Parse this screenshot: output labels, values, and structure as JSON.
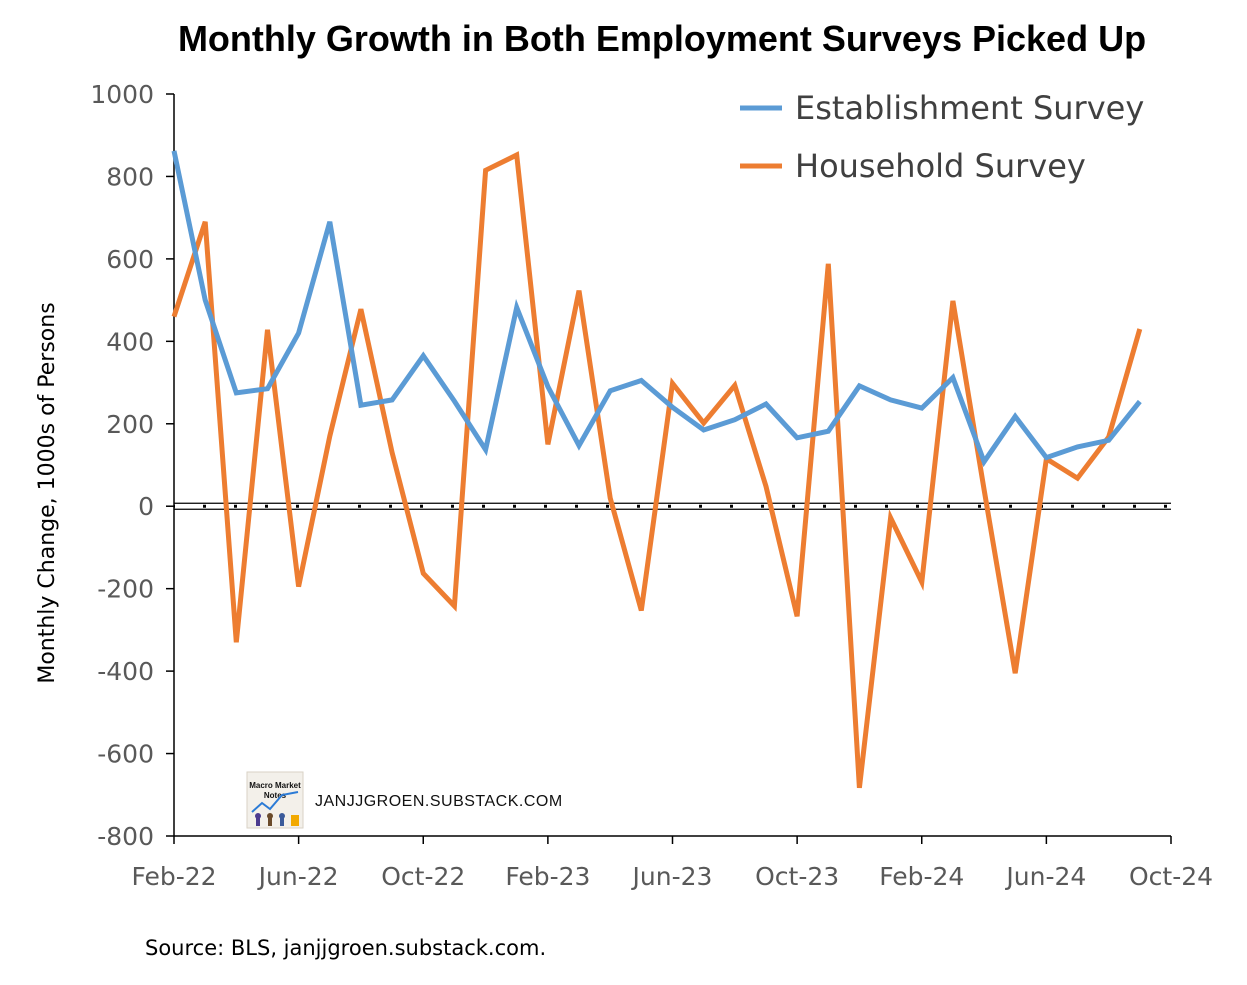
{
  "chart_data": {
    "type": "line",
    "title": "Monthly Growth in Both Employment Surveys Picked Up",
    "ylabel": "Monthly Change, 1000s of Persons",
    "xlabel": "",
    "ylim": [
      -800,
      1000
    ],
    "yticks": [
      1000,
      800,
      600,
      400,
      200,
      0,
      -200,
      -400,
      -600,
      -800
    ],
    "ytick_labels": [
      "1000",
      "800",
      "600",
      "400",
      "200",
      "0",
      "-200",
      "-400",
      "-600",
      "-800"
    ],
    "xtick_labels": [
      "Feb-22",
      "Jun-22",
      "Oct-22",
      "Feb-23",
      "Jun-23",
      "Oct-23",
      "Feb-24",
      "Jun-24",
      "Oct-24"
    ],
    "xlim": [
      "2022-02",
      "2024-10"
    ],
    "x": [
      "2022-02",
      "2022-03",
      "2022-04",
      "2022-05",
      "2022-06",
      "2022-07",
      "2022-08",
      "2022-09",
      "2022-10",
      "2022-11",
      "2022-12",
      "2023-01",
      "2023-02",
      "2023-03",
      "2023-04",
      "2023-05",
      "2023-06",
      "2023-07",
      "2023-08",
      "2023-09",
      "2023-10",
      "2023-11",
      "2023-12",
      "2024-01",
      "2024-02",
      "2024-03",
      "2024-04",
      "2024-05",
      "2024-06",
      "2024-07",
      "2024-08",
      "2024-09"
    ],
    "series": [
      {
        "name": "Establishment Survey",
        "color": "#5b9bd5",
        "values": [
          862,
          500,
          275,
          285,
          420,
          690,
          245,
          258,
          365,
          255,
          137,
          482,
          290,
          147,
          280,
          305,
          240,
          185,
          210,
          248,
          166,
          182,
          292,
          258,
          238,
          312,
          108,
          218,
          118,
          144,
          160,
          254
        ]
      },
      {
        "name": "Household Survey",
        "color": "#ed7d31",
        "values": [
          460,
          690,
          -330,
          428,
          -195,
          170,
          478,
          130,
          -163,
          -242,
          815,
          852,
          150,
          523,
          20,
          -253,
          298,
          202,
          293,
          48,
          -267,
          588,
          -683,
          -28,
          -184,
          498,
          40,
          -405,
          115,
          68,
          168,
          430
        ]
      }
    ],
    "legend_position": "top-right",
    "grid": false,
    "zero_line": true,
    "source_note": "Source: BLS, janjjgroen.substack.com."
  },
  "watermark": {
    "text": "JANJJGROEN.SUBSTACK.COM",
    "logo_icon": "macro-market-notes-logo",
    "logo_text_line1": "Macro Market",
    "logo_text_line2": "Notes"
  }
}
